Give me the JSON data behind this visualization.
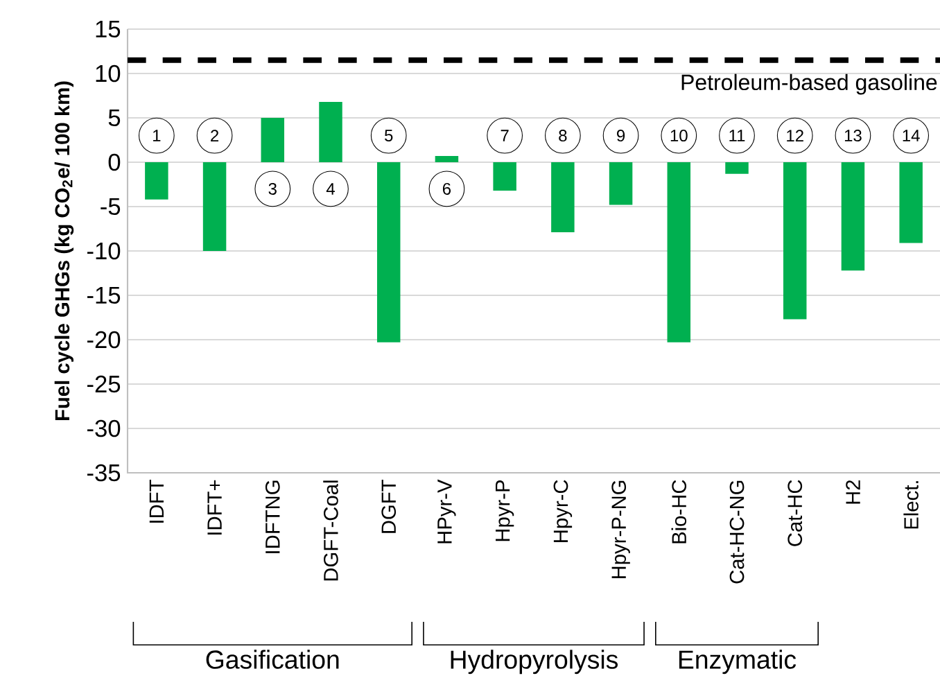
{
  "chart_data": {
    "type": "bar",
    "ylabel": "Fuel cycle GHGs (kg CO$_{2}$e/ 100 km)",
    "categories": [
      "IDFT",
      "IDFT+",
      "IDFTNG",
      "DGFT-Coal",
      "DGFT",
      "HPyr-V",
      "Hpyr-P",
      "Hpyr-C",
      "Hpyr-P-NG",
      "Bio-HC",
      "Cat-HC-NG",
      "Cat-HC",
      "H2",
      "Elect."
    ],
    "values": [
      -4.2,
      -10,
      5,
      6.8,
      -20.3,
      0.7,
      -3.2,
      -7.9,
      -4.8,
      -20.3,
      -1.3,
      -17.7,
      -12.2,
      -9.1
    ],
    "color": "#00b050",
    "ylim": [
      -35,
      15
    ],
    "yticks": [
      -35,
      -30,
      -25,
      -20,
      -15,
      -10,
      -5,
      0,
      5,
      10,
      15
    ],
    "grid": "y",
    "ref_lines": [
      {
        "axis": "y",
        "value": 11.5,
        "label": "Petroleum-based gasoline",
        "color": "#000000",
        "line_style": "dashed"
      }
    ],
    "annotations": [
      {
        "text": "1",
        "x": "IDFT",
        "y": 3
      },
      {
        "text": "2",
        "x": "IDFT+",
        "y": 3
      },
      {
        "text": "3",
        "x": "IDFTNG",
        "y": -3
      },
      {
        "text": "4",
        "x": "DGFT-Coal",
        "y": -3
      },
      {
        "text": "5",
        "x": "DGFT",
        "y": 3
      },
      {
        "text": "6",
        "x": "HPyr-V",
        "y": -3
      },
      {
        "text": "7",
        "x": "Hpyr-P",
        "y": 3
      },
      {
        "text": "8",
        "x": "Hpyr-C",
        "y": 3
      },
      {
        "text": "9",
        "x": "Hpyr-P-NG",
        "y": 3
      },
      {
        "text": "10",
        "x": "Bio-HC",
        "y": 3
      },
      {
        "text": "11",
        "x": "Cat-HC-NG",
        "y": 3
      },
      {
        "text": "12",
        "x": "Cat-HC",
        "y": 3
      },
      {
        "text": "13",
        "x": "H2",
        "y": 3
      },
      {
        "text": "14",
        "x": "Elect.",
        "y": 3
      },
      "Gasification",
      "Hydropyrolysis",
      "Enzymatic"
    ]
  }
}
